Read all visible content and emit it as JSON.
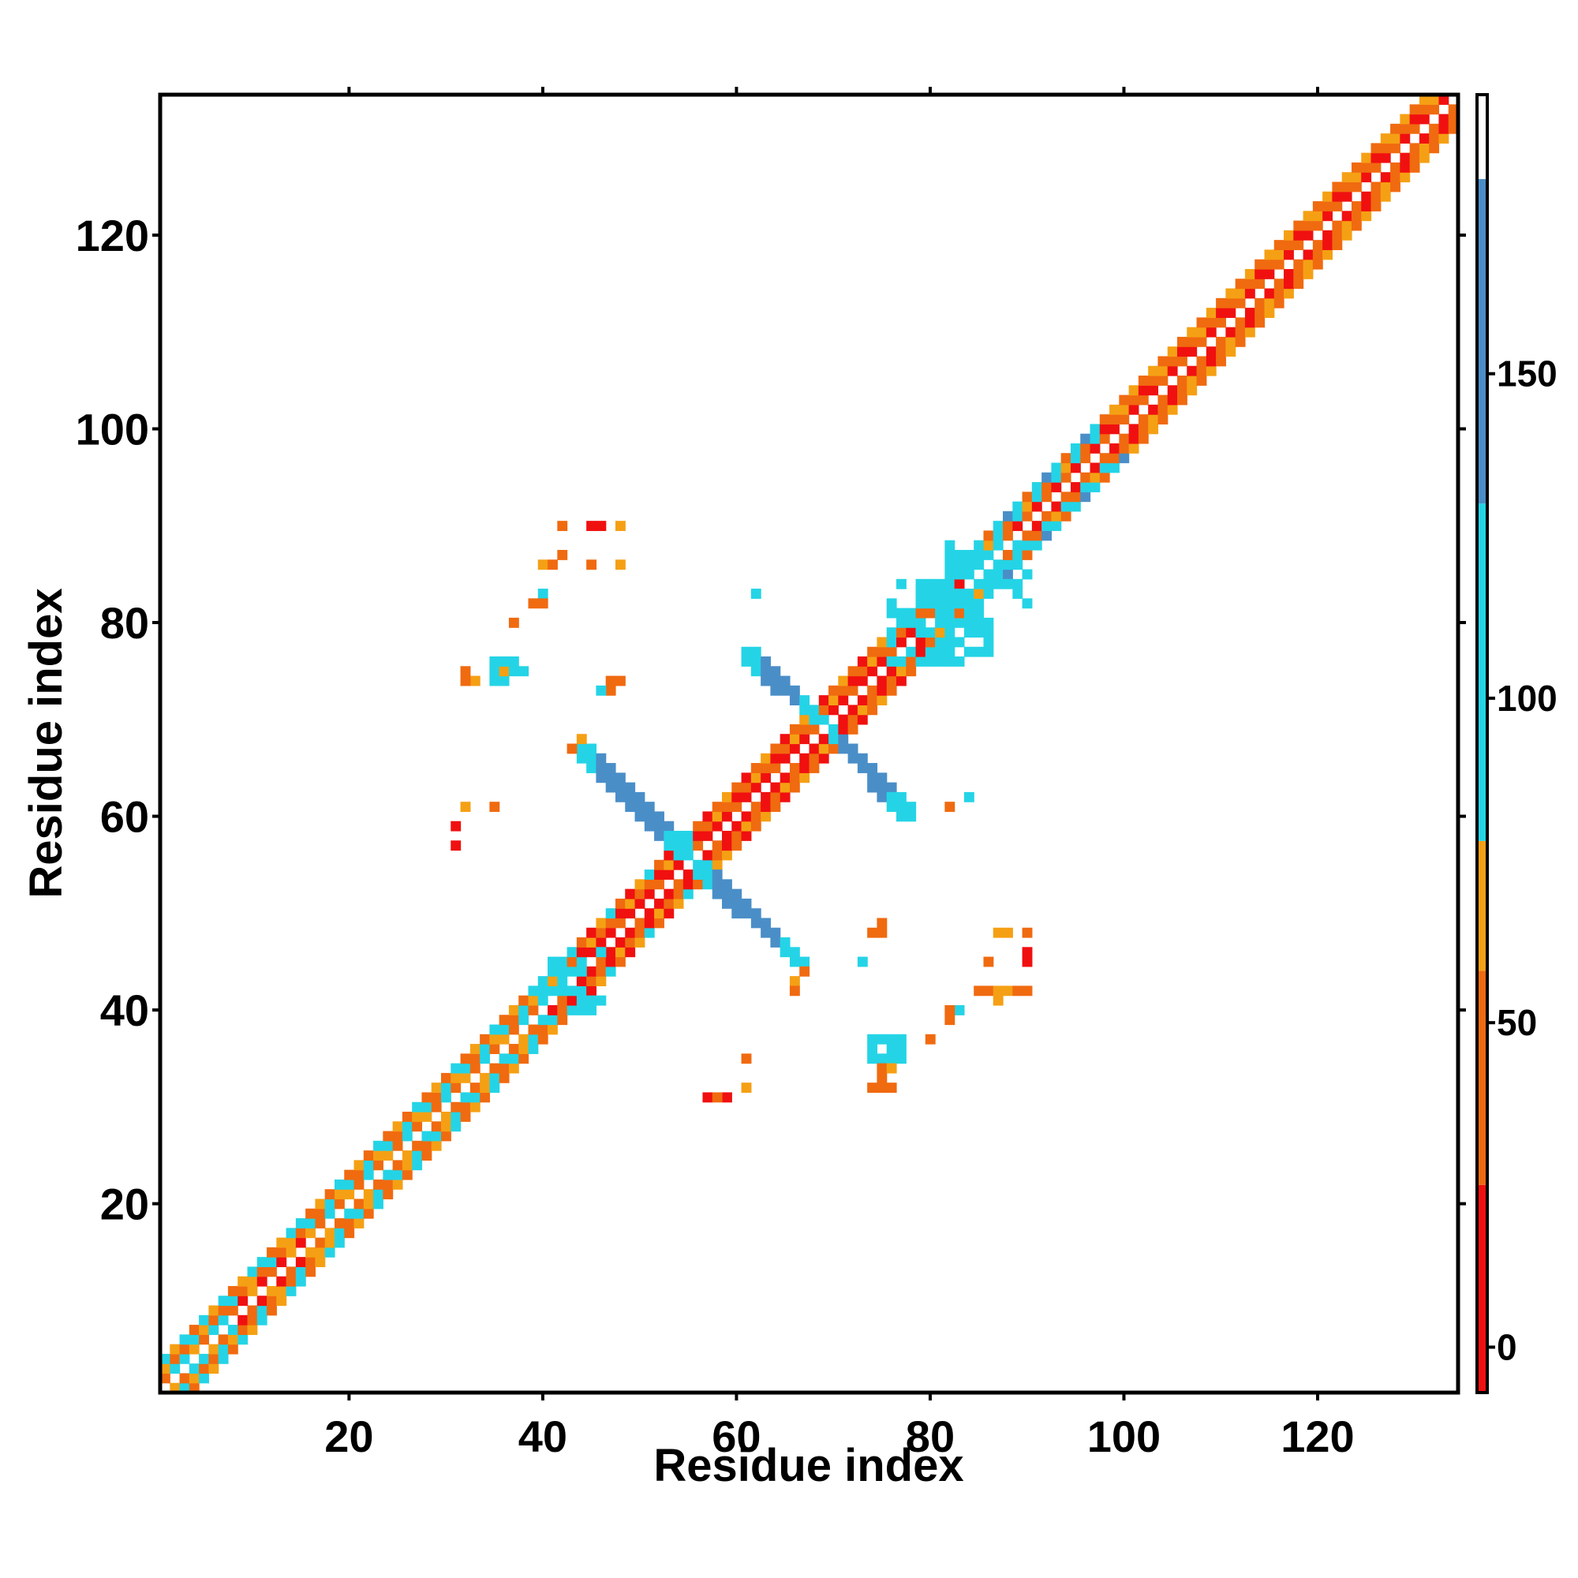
{
  "chart_data": {
    "type": "heatmap",
    "title": "",
    "xlabel": "Residue index",
    "ylabel": "Residue index",
    "xlim": [
      1,
      134
    ],
    "ylim": [
      1,
      134
    ],
    "x_ticks": [
      20,
      40,
      60,
      80,
      100,
      120
    ],
    "y_ticks": [
      20,
      40,
      60,
      80,
      100,
      120
    ],
    "colorbar": {
      "ticks": [
        0,
        50,
        100,
        150
      ],
      "range": [
        -7,
        193
      ],
      "bands": [
        {
          "from": -7,
          "to": 25,
          "color": "#f01010"
        },
        {
          "from": 25,
          "to": 58,
          "color": "#f06a10"
        },
        {
          "from": 58,
          "to": 78,
          "color": "#f5a014"
        },
        {
          "from": 78,
          "to": 130,
          "color": "#24d4e6"
        },
        {
          "from": 130,
          "to": 180,
          "color": "#4a8ec8"
        },
        {
          "from": 180,
          "to": 193,
          "color": "#ffffff"
        }
      ]
    },
    "categories": [
      {
        "name": "red",
        "color": "#f01010",
        "value": 0
      },
      {
        "name": "orange",
        "color": "#f06a10",
        "value": 40
      },
      {
        "name": "amber",
        "color": "#f5a014",
        "value": 65
      },
      {
        "name": "cyan",
        "color": "#24d4e6",
        "value": 100
      },
      {
        "name": "steel-blue",
        "color": "#4a8ec8",
        "value": 155
      }
    ],
    "band_pattern": [
      {
        "offset": 1,
        "cycle": [
          "red",
          "orange",
          "red",
          "orange"
        ]
      },
      {
        "offset": 2,
        "cycle": [
          "orange",
          "amber",
          "orange",
          "cyan"
        ]
      },
      {
        "offset": 3,
        "cycle": [
          "amber",
          "orange",
          "cyan",
          "orange"
        ]
      }
    ],
    "segments": [
      {
        "from": 1,
        "to": 8,
        "pattern": [
          [
            "cyan",
            "amber",
            "orange",
            "cyan"
          ],
          [
            "orange",
            "cyan",
            "amber",
            "orange"
          ],
          [
            "cyan",
            "orange",
            "cyan",
            "amber"
          ]
        ]
      },
      {
        "from": 8,
        "to": 16,
        "pattern": [
          [
            "red",
            "orange",
            "red",
            "amber"
          ],
          [
            "orange",
            "cyan",
            "orange",
            "amber"
          ],
          [
            "cyan",
            "orange",
            "amber",
            "cyan"
          ]
        ]
      },
      {
        "from": 16,
        "to": 40,
        "pattern": [
          [
            "orange",
            "amber",
            "orange",
            "cyan"
          ],
          [
            "amber",
            "cyan",
            "orange",
            "cyan"
          ],
          [
            "cyan",
            "orange",
            "amber",
            "orange"
          ]
        ]
      },
      {
        "from": 40,
        "to": 56,
        "pattern": [
          [
            "red",
            "orange",
            "red",
            "red"
          ],
          [
            "orange",
            "red",
            "amber",
            "orange"
          ],
          [
            "cyan",
            "orange",
            "red",
            "amber"
          ]
        ]
      },
      {
        "from": 56,
        "to": 80,
        "pattern": [
          [
            "red",
            "orange",
            "red",
            "red"
          ],
          [
            "orange",
            "red",
            "orange",
            "amber"
          ],
          [
            "amber",
            "orange",
            "red",
            "orange"
          ]
        ]
      },
      {
        "from": 80,
        "to": 98,
        "pattern": [
          [
            "red",
            "orange",
            "red",
            "orange"
          ],
          [
            "cyan",
            "orange",
            "cyan",
            "amber"
          ],
          [
            "cyan",
            "steel-blue",
            "cyan",
            "orange"
          ]
        ]
      },
      {
        "from": 98,
        "to": 134,
        "pattern": [
          [
            "red",
            "orange",
            "red",
            "orange"
          ],
          [
            "orange",
            "amber",
            "orange",
            "red"
          ],
          [
            "amber",
            "orange",
            "amber",
            "orange"
          ]
        ]
      }
    ],
    "cross_arms": [
      {
        "from": [
          44,
          66
        ],
        "to": [
          54,
          56
        ],
        "color": "steel-blue",
        "width": 2
      },
      {
        "from": [
          56,
          54
        ],
        "to": [
          66,
          45
        ],
        "color": "steel-blue",
        "width": 2
      },
      {
        "from": [
          61,
          76
        ],
        "to": [
          68,
          70
        ],
        "color": "steel-blue",
        "width": 2
      },
      {
        "from": [
          70,
          68
        ],
        "to": [
          77,
          60
        ],
        "color": "steel-blue",
        "width": 2
      }
    ],
    "blocks": [
      {
        "x": [
          76,
          86
        ],
        "y": [
          76,
          84
        ],
        "color": "cyan",
        "density": 0.6
      },
      {
        "x": [
          82,
          90
        ],
        "y": [
          82,
          88
        ],
        "color": "cyan",
        "density": 0.5
      },
      {
        "x": [
          40,
          46
        ],
        "y": [
          40,
          46
        ],
        "color": "cyan",
        "density": 0.55
      },
      {
        "x": [
          35,
          37
        ],
        "y": [
          74,
          76
        ],
        "color": "cyan",
        "density": 0.9
      },
      {
        "x": [
          74,
          77
        ],
        "y": [
          35,
          37
        ],
        "color": "cyan",
        "density": 0.9
      }
    ],
    "points": [
      {
        "x": 42,
        "y": 90,
        "color": "orange"
      },
      {
        "x": 45,
        "y": 90,
        "color": "red"
      },
      {
        "x": 46,
        "y": 90,
        "color": "red"
      },
      {
        "x": 48,
        "y": 90,
        "color": "amber"
      },
      {
        "x": 40,
        "y": 86,
        "color": "amber"
      },
      {
        "x": 41,
        "y": 86,
        "color": "orange"
      },
      {
        "x": 42,
        "y": 87,
        "color": "orange"
      },
      {
        "x": 45,
        "y": 86,
        "color": "orange"
      },
      {
        "x": 48,
        "y": 86,
        "color": "amber"
      },
      {
        "x": 40,
        "y": 83,
        "color": "cyan"
      },
      {
        "x": 39,
        "y": 82,
        "color": "orange"
      },
      {
        "x": 40,
        "y": 82,
        "color": "orange"
      },
      {
        "x": 37,
        "y": 80,
        "color": "orange"
      },
      {
        "x": 32,
        "y": 75,
        "color": "orange"
      },
      {
        "x": 33,
        "y": 74,
        "color": "amber"
      },
      {
        "x": 32,
        "y": 74,
        "color": "orange"
      },
      {
        "x": 36,
        "y": 75,
        "color": "amber"
      },
      {
        "x": 38,
        "y": 75,
        "color": "cyan"
      },
      {
        "x": 47,
        "y": 74,
        "color": "orange"
      },
      {
        "x": 48,
        "y": 74,
        "color": "orange"
      },
      {
        "x": 47,
        "y": 73,
        "color": "orange"
      },
      {
        "x": 46,
        "y": 73,
        "color": "cyan"
      },
      {
        "x": 43,
        "y": 67,
        "color": "orange"
      },
      {
        "x": 44,
        "y": 68,
        "color": "amber"
      },
      {
        "x": 32,
        "y": 61,
        "color": "amber"
      },
      {
        "x": 35,
        "y": 61,
        "color": "orange"
      },
      {
        "x": 31,
        "y": 59,
        "color": "red"
      },
      {
        "x": 31,
        "y": 57,
        "color": "red"
      },
      {
        "x": 62,
        "y": 83,
        "color": "cyan"
      },
      {
        "x": 84,
        "y": 62,
        "color": "cyan"
      },
      {
        "x": 74,
        "y": 48,
        "color": "orange"
      },
      {
        "x": 75,
        "y": 48,
        "color": "orange"
      },
      {
        "x": 75,
        "y": 49,
        "color": "orange"
      },
      {
        "x": 73,
        "y": 45,
        "color": "cyan"
      },
      {
        "x": 87,
        "y": 48,
        "color": "amber"
      },
      {
        "x": 88,
        "y": 48,
        "color": "amber"
      },
      {
        "x": 90,
        "y": 48,
        "color": "orange"
      },
      {
        "x": 90,
        "y": 46,
        "color": "red"
      },
      {
        "x": 90,
        "y": 45,
        "color": "red"
      },
      {
        "x": 86,
        "y": 45,
        "color": "orange"
      },
      {
        "x": 85,
        "y": 42,
        "color": "orange"
      },
      {
        "x": 86,
        "y": 42,
        "color": "orange"
      },
      {
        "x": 87,
        "y": 42,
        "color": "amber"
      },
      {
        "x": 88,
        "y": 42,
        "color": "amber"
      },
      {
        "x": 89,
        "y": 42,
        "color": "orange"
      },
      {
        "x": 90,
        "y": 42,
        "color": "orange"
      },
      {
        "x": 87,
        "y": 41,
        "color": "amber"
      },
      {
        "x": 83,
        "y": 40,
        "color": "cyan"
      },
      {
        "x": 82,
        "y": 40,
        "color": "orange"
      },
      {
        "x": 82,
        "y": 39,
        "color": "orange"
      },
      {
        "x": 80,
        "y": 37,
        "color": "orange"
      },
      {
        "x": 61,
        "y": 35,
        "color": "orange"
      },
      {
        "x": 61,
        "y": 32,
        "color": "amber"
      },
      {
        "x": 57,
        "y": 31,
        "color": "red"
      },
      {
        "x": 59,
        "y": 31,
        "color": "red"
      },
      {
        "x": 58,
        "y": 31,
        "color": "orange"
      },
      {
        "x": 74,
        "y": 32,
        "color": "orange"
      },
      {
        "x": 75,
        "y": 32,
        "color": "orange"
      },
      {
        "x": 76,
        "y": 32,
        "color": "orange"
      },
      {
        "x": 75,
        "y": 34,
        "color": "orange"
      },
      {
        "x": 76,
        "y": 34,
        "color": "amber"
      },
      {
        "x": 75,
        "y": 33,
        "color": "orange"
      },
      {
        "x": 66,
        "y": 43,
        "color": "amber"
      },
      {
        "x": 67,
        "y": 44,
        "color": "orange"
      },
      {
        "x": 66,
        "y": 42,
        "color": "orange"
      },
      {
        "x": 82,
        "y": 61,
        "color": "orange"
      }
    ]
  }
}
